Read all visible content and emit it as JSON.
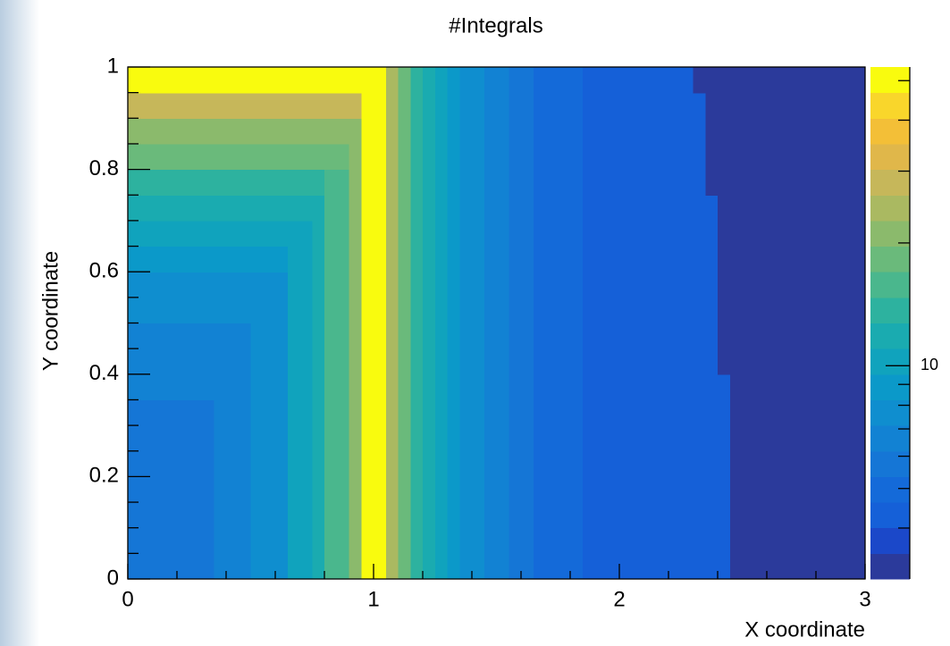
{
  "chart_data": {
    "type": "heatmap",
    "title": "#Integrals",
    "x_label": "X coordinate",
    "y_label": "Y coordinate",
    "xlim": [
      0,
      3
    ],
    "ylim": [
      0,
      1
    ],
    "xticks": [
      0,
      1,
      2,
      3
    ],
    "yticks": [
      0,
      0.2,
      0.4,
      0.6,
      0.8,
      1
    ],
    "xminorticks": [
      0.2,
      0.4,
      0.6,
      0.8,
      1.2,
      1.4,
      1.6,
      1.8,
      2.2,
      2.4,
      2.6,
      2.8
    ],
    "yminorticks": [
      0.05,
      0.1,
      0.15,
      0.25,
      0.3,
      0.35,
      0.45,
      0.5,
      0.55,
      0.65,
      0.7,
      0.75,
      0.85,
      0.9,
      0.95
    ],
    "zlim": [
      3,
      54
    ],
    "zlog": true,
    "zticks": [
      10
    ],
    "zminorticks": [
      4,
      5,
      6,
      7,
      8,
      9,
      20,
      30,
      40,
      50
    ],
    "palette": [
      "#2b3a9b",
      "#1b48c9",
      "#1560d8",
      "#146ad9",
      "#1576d6",
      "#1282d3",
      "#0f8ecf",
      "#0b99c9",
      "#10a3bd",
      "#1aabb0",
      "#2db29f",
      "#4ab78d",
      "#6aba7b",
      "#8bba6c",
      "#aab961",
      "#c6b75a",
      "#e0b74a",
      "#f3bf37",
      "#f9d62b",
      "#f9fb0e"
    ],
    "xbins": [
      0,
      0.05,
      0.1,
      0.15,
      0.2,
      0.25,
      0.3,
      0.35,
      0.4,
      0.45,
      0.5,
      0.55,
      0.6,
      0.65,
      0.7,
      0.75,
      0.8,
      0.85,
      0.9,
      0.95,
      1,
      1.05,
      1.1,
      1.15,
      1.2,
      1.25,
      1.3,
      1.35,
      1.4,
      1.45,
      1.5,
      1.55,
      1.6,
      1.65,
      1.7,
      1.75,
      1.8,
      1.85,
      1.9,
      1.95,
      2,
      2.05,
      2.1,
      2.15,
      2.2,
      2.25,
      2.3,
      2.35,
      2.4,
      2.45,
      2.5,
      2.55,
      2.6,
      2.65,
      2.7,
      2.75,
      2.8,
      2.85,
      2.9,
      2.95,
      3
    ],
    "ybins": [
      0,
      0.05,
      0.1,
      0.15,
      0.2,
      0.25,
      0.3,
      0.35,
      0.4,
      0.45,
      0.5,
      0.55,
      0.6,
      0.65,
      0.7,
      0.75,
      0.8,
      0.85,
      0.9,
      0.95,
      1
    ],
    "z": [
      [
        5.8,
        5.8,
        5.8,
        5.8,
        5.8,
        5.8,
        5.8,
        6.6,
        6.6,
        6.6,
        7.7,
        7.7,
        7.7,
        10.3,
        10.3,
        11.9,
        15.8,
        15.8,
        21,
        50,
        50,
        24.4,
        18.3,
        13.7,
        11.9,
        10.3,
        8.9,
        7.7,
        7.7,
        6.6,
        6.6,
        5.8,
        5.8,
        5,
        5,
        5,
        5,
        4.3,
        4.3,
        4.3,
        4.3,
        4.3,
        4.3,
        4.3,
        4.3,
        4.3,
        4.3,
        4.3,
        4.3,
        3.2,
        3.2,
        3.2,
        3.2,
        3.2,
        3.2,
        3.2,
        3.2,
        3.2,
        3.2,
        3.2
      ],
      [
        5.8,
        5.8,
        5.8,
        5.8,
        5.8,
        5.8,
        5.8,
        6.6,
        6.6,
        6.6,
        7.7,
        7.7,
        7.7,
        10.3,
        10.3,
        11.9,
        15.8,
        15.8,
        21,
        50,
        50,
        24.4,
        18.3,
        13.7,
        11.9,
        10.3,
        8.9,
        7.7,
        7.7,
        6.6,
        6.6,
        5.8,
        5.8,
        5,
        5,
        5,
        5,
        4.3,
        4.3,
        4.3,
        4.3,
        4.3,
        4.3,
        4.3,
        4.3,
        4.3,
        4.3,
        4.3,
        4.3,
        3.2,
        3.2,
        3.2,
        3.2,
        3.2,
        3.2,
        3.2,
        3.2,
        3.2,
        3.2,
        3.2
      ],
      [
        5.8,
        5.8,
        5.8,
        5.8,
        5.8,
        5.8,
        5.8,
        6.6,
        6.6,
        6.6,
        7.7,
        7.7,
        7.7,
        10.3,
        10.3,
        11.9,
        15.8,
        15.8,
        21,
        50,
        50,
        24.4,
        18.3,
        13.7,
        11.9,
        10.3,
        8.9,
        7.7,
        7.7,
        6.6,
        6.6,
        5.8,
        5.8,
        5,
        5,
        5,
        5,
        4.3,
        4.3,
        4.3,
        4.3,
        4.3,
        4.3,
        4.3,
        4.3,
        4.3,
        4.3,
        4.3,
        4.3,
        3.2,
        3.2,
        3.2,
        3.2,
        3.2,
        3.2,
        3.2,
        3.2,
        3.2,
        3.2,
        3.2
      ],
      [
        5.8,
        5.8,
        5.8,
        5.8,
        5.8,
        5.8,
        5.8,
        6.6,
        6.6,
        6.6,
        7.7,
        7.7,
        7.7,
        10.3,
        10.3,
        11.9,
        15.8,
        15.8,
        21,
        50,
        50,
        24.4,
        18.3,
        13.7,
        11.9,
        10.3,
        8.9,
        7.7,
        7.7,
        6.6,
        6.6,
        5.8,
        5.8,
        5,
        5,
        5,
        5,
        4.3,
        4.3,
        4.3,
        4.3,
        4.3,
        4.3,
        4.3,
        4.3,
        4.3,
        4.3,
        4.3,
        4.3,
        3.2,
        3.2,
        3.2,
        3.2,
        3.2,
        3.2,
        3.2,
        3.2,
        3.2,
        3.2,
        3.2
      ],
      [
        5.8,
        5.8,
        5.8,
        5.8,
        5.8,
        5.8,
        5.8,
        6.6,
        6.6,
        6.6,
        7.7,
        7.7,
        7.7,
        10.3,
        10.3,
        11.9,
        15.8,
        15.8,
        21,
        50,
        50,
        24.4,
        18.3,
        13.7,
        11.9,
        10.3,
        8.9,
        7.7,
        7.7,
        6.6,
        6.6,
        5.8,
        5.8,
        5,
        5,
        5,
        5,
        4.3,
        4.3,
        4.3,
        4.3,
        4.3,
        4.3,
        4.3,
        4.3,
        4.3,
        4.3,
        4.3,
        4.3,
        3.2,
        3.2,
        3.2,
        3.2,
        3.2,
        3.2,
        3.2,
        3.2,
        3.2,
        3.2,
        3.2
      ],
      [
        5.8,
        5.8,
        5.8,
        5.8,
        5.8,
        5.8,
        5.8,
        6.6,
        6.6,
        6.6,
        7.7,
        7.7,
        7.7,
        10.3,
        10.3,
        11.9,
        15.8,
        15.8,
        21,
        50,
        50,
        24.4,
        18.3,
        13.7,
        11.9,
        10.3,
        8.9,
        7.7,
        7.7,
        6.6,
        6.6,
        5.8,
        5.8,
        5,
        5,
        5,
        5,
        4.3,
        4.3,
        4.3,
        4.3,
        4.3,
        4.3,
        4.3,
        4.3,
        4.3,
        4.3,
        4.3,
        4.3,
        3.2,
        3.2,
        3.2,
        3.2,
        3.2,
        3.2,
        3.2,
        3.2,
        3.2,
        3.2,
        3.2
      ],
      [
        5.8,
        5.8,
        5.8,
        5.8,
        5.8,
        5.8,
        5.8,
        6.6,
        6.6,
        6.6,
        7.7,
        7.7,
        7.7,
        10.3,
        10.3,
        11.9,
        15.8,
        15.8,
        21,
        50,
        50,
        24.4,
        18.3,
        13.7,
        11.9,
        10.3,
        8.9,
        7.7,
        7.7,
        6.6,
        6.6,
        5.8,
        5.8,
        5,
        5,
        5,
        5,
        4.3,
        4.3,
        4.3,
        4.3,
        4.3,
        4.3,
        4.3,
        4.3,
        4.3,
        4.3,
        4.3,
        4.3,
        3.2,
        3.2,
        3.2,
        3.2,
        3.2,
        3.2,
        3.2,
        3.2,
        3.2,
        3.2,
        3.2
      ],
      [
        6.6,
        6.6,
        6.6,
        6.6,
        6.6,
        6.6,
        6.6,
        6.6,
        6.6,
        6.6,
        7.7,
        7.7,
        7.7,
        10.3,
        10.3,
        11.9,
        15.8,
        15.8,
        21,
        50,
        50,
        24.4,
        18.3,
        13.7,
        11.9,
        10.3,
        8.9,
        7.7,
        7.7,
        6.6,
        6.6,
        5.8,
        5.8,
        5,
        5,
        5,
        5,
        4.3,
        4.3,
        4.3,
        4.3,
        4.3,
        4.3,
        4.3,
        4.3,
        4.3,
        4.3,
        4.3,
        4.3,
        3.2,
        3.2,
        3.2,
        3.2,
        3.2,
        3.2,
        3.2,
        3.2,
        3.2,
        3.2,
        3.2
      ],
      [
        6.6,
        6.6,
        6.6,
        6.6,
        6.6,
        6.6,
        6.6,
        6.6,
        6.6,
        6.6,
        7.7,
        7.7,
        7.7,
        10.3,
        10.3,
        11.9,
        15.8,
        15.8,
        21,
        50,
        50,
        24.4,
        18.3,
        13.7,
        11.9,
        10.3,
        8.9,
        7.7,
        7.7,
        6.6,
        6.6,
        5.8,
        5.8,
        5,
        5,
        5,
        5,
        4.3,
        4.3,
        4.3,
        4.3,
        4.3,
        4.3,
        4.3,
        4.3,
        4.3,
        4.3,
        4.3,
        3.2,
        3.2,
        3.2,
        3.2,
        3.2,
        3.2,
        3.2,
        3.2,
        3.2,
        3.2,
        3.2,
        3.2
      ],
      [
        6.6,
        6.6,
        6.6,
        6.6,
        6.6,
        6.6,
        6.6,
        6.6,
        6.6,
        6.6,
        7.7,
        7.7,
        7.7,
        10.3,
        10.3,
        11.9,
        15.8,
        15.8,
        21,
        50,
        50,
        24.4,
        18.3,
        13.7,
        11.9,
        10.3,
        8.9,
        7.7,
        7.7,
        6.6,
        6.6,
        5.8,
        5.8,
        5,
        5,
        5,
        5,
        4.3,
        4.3,
        4.3,
        4.3,
        4.3,
        4.3,
        4.3,
        4.3,
        4.3,
        4.3,
        4.3,
        3.2,
        3.2,
        3.2,
        3.2,
        3.2,
        3.2,
        3.2,
        3.2,
        3.2,
        3.2,
        3.2,
        3.2
      ],
      [
        7.7,
        7.7,
        7.7,
        7.7,
        7.7,
        7.7,
        7.7,
        7.7,
        7.7,
        7.7,
        7.7,
        7.7,
        7.7,
        10.3,
        10.3,
        11.9,
        15.8,
        15.8,
        21,
        50,
        50,
        24.4,
        18.3,
        13.7,
        11.9,
        10.3,
        8.9,
        7.7,
        7.7,
        6.6,
        6.6,
        5.8,
        5.8,
        5,
        5,
        5,
        5,
        4.3,
        4.3,
        4.3,
        4.3,
        4.3,
        4.3,
        4.3,
        4.3,
        4.3,
        4.3,
        4.3,
        3.2,
        3.2,
        3.2,
        3.2,
        3.2,
        3.2,
        3.2,
        3.2,
        3.2,
        3.2,
        3.2,
        3.2
      ],
      [
        7.7,
        7.7,
        7.7,
        7.7,
        7.7,
        7.7,
        7.7,
        7.7,
        7.7,
        7.7,
        7.7,
        7.7,
        7.7,
        10.3,
        10.3,
        11.9,
        15.8,
        15.8,
        21,
        50,
        50,
        24.4,
        18.3,
        13.7,
        11.9,
        10.3,
        8.9,
        7.7,
        7.7,
        6.6,
        6.6,
        5.8,
        5.8,
        5,
        5,
        5,
        5,
        4.3,
        4.3,
        4.3,
        4.3,
        4.3,
        4.3,
        4.3,
        4.3,
        4.3,
        4.3,
        4.3,
        3.2,
        3.2,
        3.2,
        3.2,
        3.2,
        3.2,
        3.2,
        3.2,
        3.2,
        3.2,
        3.2,
        3.2
      ],
      [
        8.9,
        8.9,
        8.9,
        8.9,
        8.9,
        8.9,
        8.9,
        8.9,
        8.9,
        8.9,
        8.9,
        8.9,
        8.9,
        10.3,
        10.3,
        11.9,
        15.8,
        15.8,
        21,
        50,
        50,
        24.4,
        18.3,
        13.7,
        11.9,
        10.3,
        8.9,
        7.7,
        7.7,
        6.6,
        6.6,
        5.8,
        5.8,
        5,
        5,
        5,
        5,
        4.3,
        4.3,
        4.3,
        4.3,
        4.3,
        4.3,
        4.3,
        4.3,
        4.3,
        4.3,
        4.3,
        3.2,
        3.2,
        3.2,
        3.2,
        3.2,
        3.2,
        3.2,
        3.2,
        3.2,
        3.2,
        3.2,
        3.2
      ],
      [
        10.3,
        10.3,
        10.3,
        10.3,
        10.3,
        10.3,
        10.3,
        10.3,
        10.3,
        10.3,
        10.3,
        10.3,
        10.3,
        10.3,
        10.3,
        11.9,
        15.8,
        15.8,
        21,
        50,
        50,
        24.4,
        18.3,
        13.7,
        11.9,
        10.3,
        8.9,
        7.7,
        7.7,
        6.6,
        6.6,
        5.8,
        5.8,
        5,
        5,
        5,
        5,
        4.3,
        4.3,
        4.3,
        4.3,
        4.3,
        4.3,
        4.3,
        4.3,
        4.3,
        4.3,
        4.3,
        3.2,
        3.2,
        3.2,
        3.2,
        3.2,
        3.2,
        3.2,
        3.2,
        3.2,
        3.2,
        3.2,
        3.2
      ],
      [
        11.9,
        11.9,
        11.9,
        11.9,
        11.9,
        11.9,
        11.9,
        11.9,
        11.9,
        11.9,
        11.9,
        11.9,
        11.9,
        11.9,
        11.9,
        11.9,
        15.8,
        15.8,
        21,
        50,
        50,
        24.4,
        18.3,
        13.7,
        11.9,
        10.3,
        8.9,
        7.7,
        7.7,
        6.6,
        6.6,
        5.8,
        5.8,
        5,
        5,
        5,
        5,
        4.3,
        4.3,
        4.3,
        4.3,
        4.3,
        4.3,
        4.3,
        4.3,
        4.3,
        4.3,
        4.3,
        3.2,
        3.2,
        3.2,
        3.2,
        3.2,
        3.2,
        3.2,
        3.2,
        3.2,
        3.2,
        3.2,
        3.2
      ],
      [
        13.7,
        13.7,
        13.7,
        13.7,
        13.7,
        13.7,
        13.7,
        13.7,
        13.7,
        13.7,
        13.7,
        13.7,
        13.7,
        13.7,
        13.7,
        13.7,
        15.8,
        15.8,
        21,
        50,
        50,
        24.4,
        18.3,
        13.7,
        11.9,
        10.3,
        8.9,
        7.7,
        7.7,
        6.6,
        6.6,
        5.8,
        5.8,
        5,
        5,
        5,
        5,
        4.3,
        4.3,
        4.3,
        4.3,
        4.3,
        4.3,
        4.3,
        4.3,
        4.3,
        4.3,
        3.2,
        3.2,
        3.2,
        3.2,
        3.2,
        3.2,
        3.2,
        3.2,
        3.2,
        3.2,
        3.2,
        3.2,
        3.2
      ],
      [
        18.3,
        18.3,
        18.3,
        18.3,
        18.3,
        18.3,
        18.3,
        18.3,
        18.3,
        18.3,
        18.3,
        18.3,
        18.3,
        18.3,
        18.3,
        18.3,
        18.3,
        18.3,
        21,
        50,
        50,
        24.4,
        18.3,
        13.7,
        11.9,
        10.3,
        8.9,
        7.7,
        7.7,
        6.6,
        6.6,
        5.8,
        5.8,
        5,
        5,
        5,
        5,
        4.3,
        4.3,
        4.3,
        4.3,
        4.3,
        4.3,
        4.3,
        4.3,
        4.3,
        4.3,
        3.2,
        3.2,
        3.2,
        3.2,
        3.2,
        3.2,
        3.2,
        3.2,
        3.2,
        3.2,
        3.2,
        3.2,
        3.2
      ],
      [
        21,
        21,
        21,
        21,
        21,
        21,
        21,
        21,
        21,
        21,
        21,
        21,
        21,
        21,
        21,
        21,
        21,
        21,
        21,
        50,
        50,
        24.4,
        18.3,
        13.7,
        11.9,
        10.3,
        8.9,
        7.7,
        7.7,
        6.6,
        6.6,
        5.8,
        5.8,
        5,
        5,
        5,
        5,
        4.3,
        4.3,
        4.3,
        4.3,
        4.3,
        4.3,
        4.3,
        4.3,
        4.3,
        4.3,
        3.2,
        3.2,
        3.2,
        3.2,
        3.2,
        3.2,
        3.2,
        3.2,
        3.2,
        3.2,
        3.2,
        3.2,
        3.2
      ],
      [
        28,
        28,
        28,
        28,
        28,
        28,
        28,
        28,
        28,
        28,
        28,
        28,
        28,
        28,
        28,
        28,
        28,
        28,
        28,
        50,
        50,
        24.4,
        18.3,
        13.7,
        11.9,
        10.3,
        8.9,
        7.7,
        7.7,
        6.6,
        6.6,
        5.8,
        5.8,
        5,
        5,
        5,
        5,
        4.3,
        4.3,
        4.3,
        4.3,
        4.3,
        4.3,
        4.3,
        4.3,
        4.3,
        4.3,
        3.2,
        3.2,
        3.2,
        3.2,
        3.2,
        3.2,
        3.2,
        3.2,
        3.2,
        3.2,
        3.2,
        3.2,
        3.2
      ],
      [
        50,
        50,
        50,
        50,
        50,
        50,
        50,
        50,
        50,
        50,
        50,
        50,
        50,
        50,
        50,
        50,
        50,
        50,
        50,
        50,
        50,
        24.4,
        18.3,
        13.7,
        11.9,
        10.3,
        8.9,
        7.7,
        7.7,
        6.6,
        6.6,
        5.8,
        5.8,
        5,
        5,
        5,
        5,
        4.3,
        4.3,
        4.3,
        4.3,
        4.3,
        4.3,
        4.3,
        4.3,
        4.3,
        3.2,
        3.2,
        3.2,
        3.2,
        3.2,
        3.2,
        3.2,
        3.2,
        3.2,
        3.2,
        3.2,
        3.2,
        3.2,
        3.2
      ]
    ]
  }
}
